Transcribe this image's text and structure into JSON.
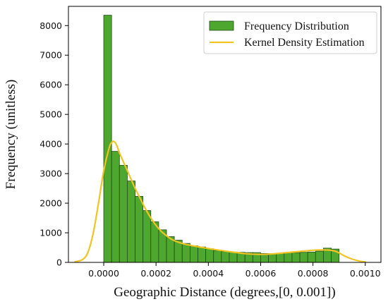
{
  "chart_data": {
    "type": "bar",
    "xlabel": "Geographic Distance (degrees,[0, 0.001])",
    "ylabel": "Frequency (unitless)",
    "xlim": [
      -0.000135,
      0.00106
    ],
    "ylim": [
      0,
      8650
    ],
    "xticks": [
      {
        "value": 0.0,
        "label": "0.0000"
      },
      {
        "value": 0.0002,
        "label": "0.0002"
      },
      {
        "value": 0.0004,
        "label": "0.0004"
      },
      {
        "value": 0.0006,
        "label": "0.0006"
      },
      {
        "value": 0.0008,
        "label": "0.0008"
      },
      {
        "value": 0.001,
        "label": "0.0010"
      }
    ],
    "yticks": [
      {
        "value": 0,
        "label": "0"
      },
      {
        "value": 1000,
        "label": "1000"
      },
      {
        "value": 2000,
        "label": "2000"
      },
      {
        "value": 3000,
        "label": "3000"
      },
      {
        "value": 4000,
        "label": "4000"
      },
      {
        "value": 5000,
        "label": "5000"
      },
      {
        "value": 6000,
        "label": "6000"
      },
      {
        "value": 7000,
        "label": "7000"
      },
      {
        "value": 8000,
        "label": "8000"
      }
    ],
    "bin_edges": [
      0.0,
      3e-05,
      6e-05,
      9e-05,
      0.00012,
      0.00015,
      0.00018,
      0.00021,
      0.00024,
      0.00027,
      0.0003,
      0.00033,
      0.00036,
      0.00039,
      0.00042,
      0.00045,
      0.00048,
      0.00051,
      0.00054,
      0.00057,
      0.0006,
      0.00063,
      0.00066,
      0.00069,
      0.00072,
      0.00075,
      0.00078,
      0.00081,
      0.00084,
      0.00087,
      0.0009
    ],
    "series": [
      {
        "name": "Frequency Distribution",
        "type": "histogram",
        "color": "#4ea72e",
        "edgecolor": "#1e4d14",
        "values": [
          8350,
          3750,
          3280,
          2750,
          2230,
          1750,
          1370,
          1100,
          870,
          750,
          640,
          560,
          520,
          460,
          400,
          370,
          350,
          340,
          330,
          330,
          300,
          300,
          300,
          330,
          330,
          340,
          350,
          380,
          480,
          450
        ]
      },
      {
        "name": "Kernel Density Estimation",
        "type": "line",
        "color": "#f0c424",
        "x": [
          -0.00011,
          -8e-05,
          -6e-05,
          -4e-05,
          -2e-05,
          0.0,
          2e-05,
          3e-05,
          4e-05,
          5e-05,
          6e-05,
          8e-05,
          0.0001,
          0.00012,
          0.00014,
          0.00016,
          0.00018,
          0.0002,
          0.00022,
          0.00024,
          0.00026,
          0.00028,
          0.0003,
          0.00033,
          0.00036,
          0.0004,
          0.00045,
          0.0005,
          0.00055,
          0.0006,
          0.00065,
          0.0007,
          0.00075,
          0.0008,
          0.00085,
          0.00088,
          0.0009,
          0.00092,
          0.00095,
          0.00098,
          0.001
        ],
        "y": [
          20,
          100,
          350,
          1000,
          2000,
          3100,
          3850,
          4050,
          4080,
          3950,
          3700,
          3300,
          2900,
          2500,
          2150,
          1800,
          1500,
          1250,
          1050,
          900,
          780,
          700,
          640,
          580,
          530,
          470,
          400,
          340,
          290,
          270,
          290,
          330,
          370,
          410,
          420,
          390,
          320,
          220,
          110,
          40,
          15
        ]
      }
    ],
    "legend": {
      "position": "top-right",
      "entries": [
        {
          "label": "Frequency Distribution",
          "kind": "patch",
          "color": "#4ea72e"
        },
        {
          "label": "Kernel Density Estimation",
          "kind": "line",
          "color": "#f0c424"
        }
      ]
    },
    "grid": false
  }
}
